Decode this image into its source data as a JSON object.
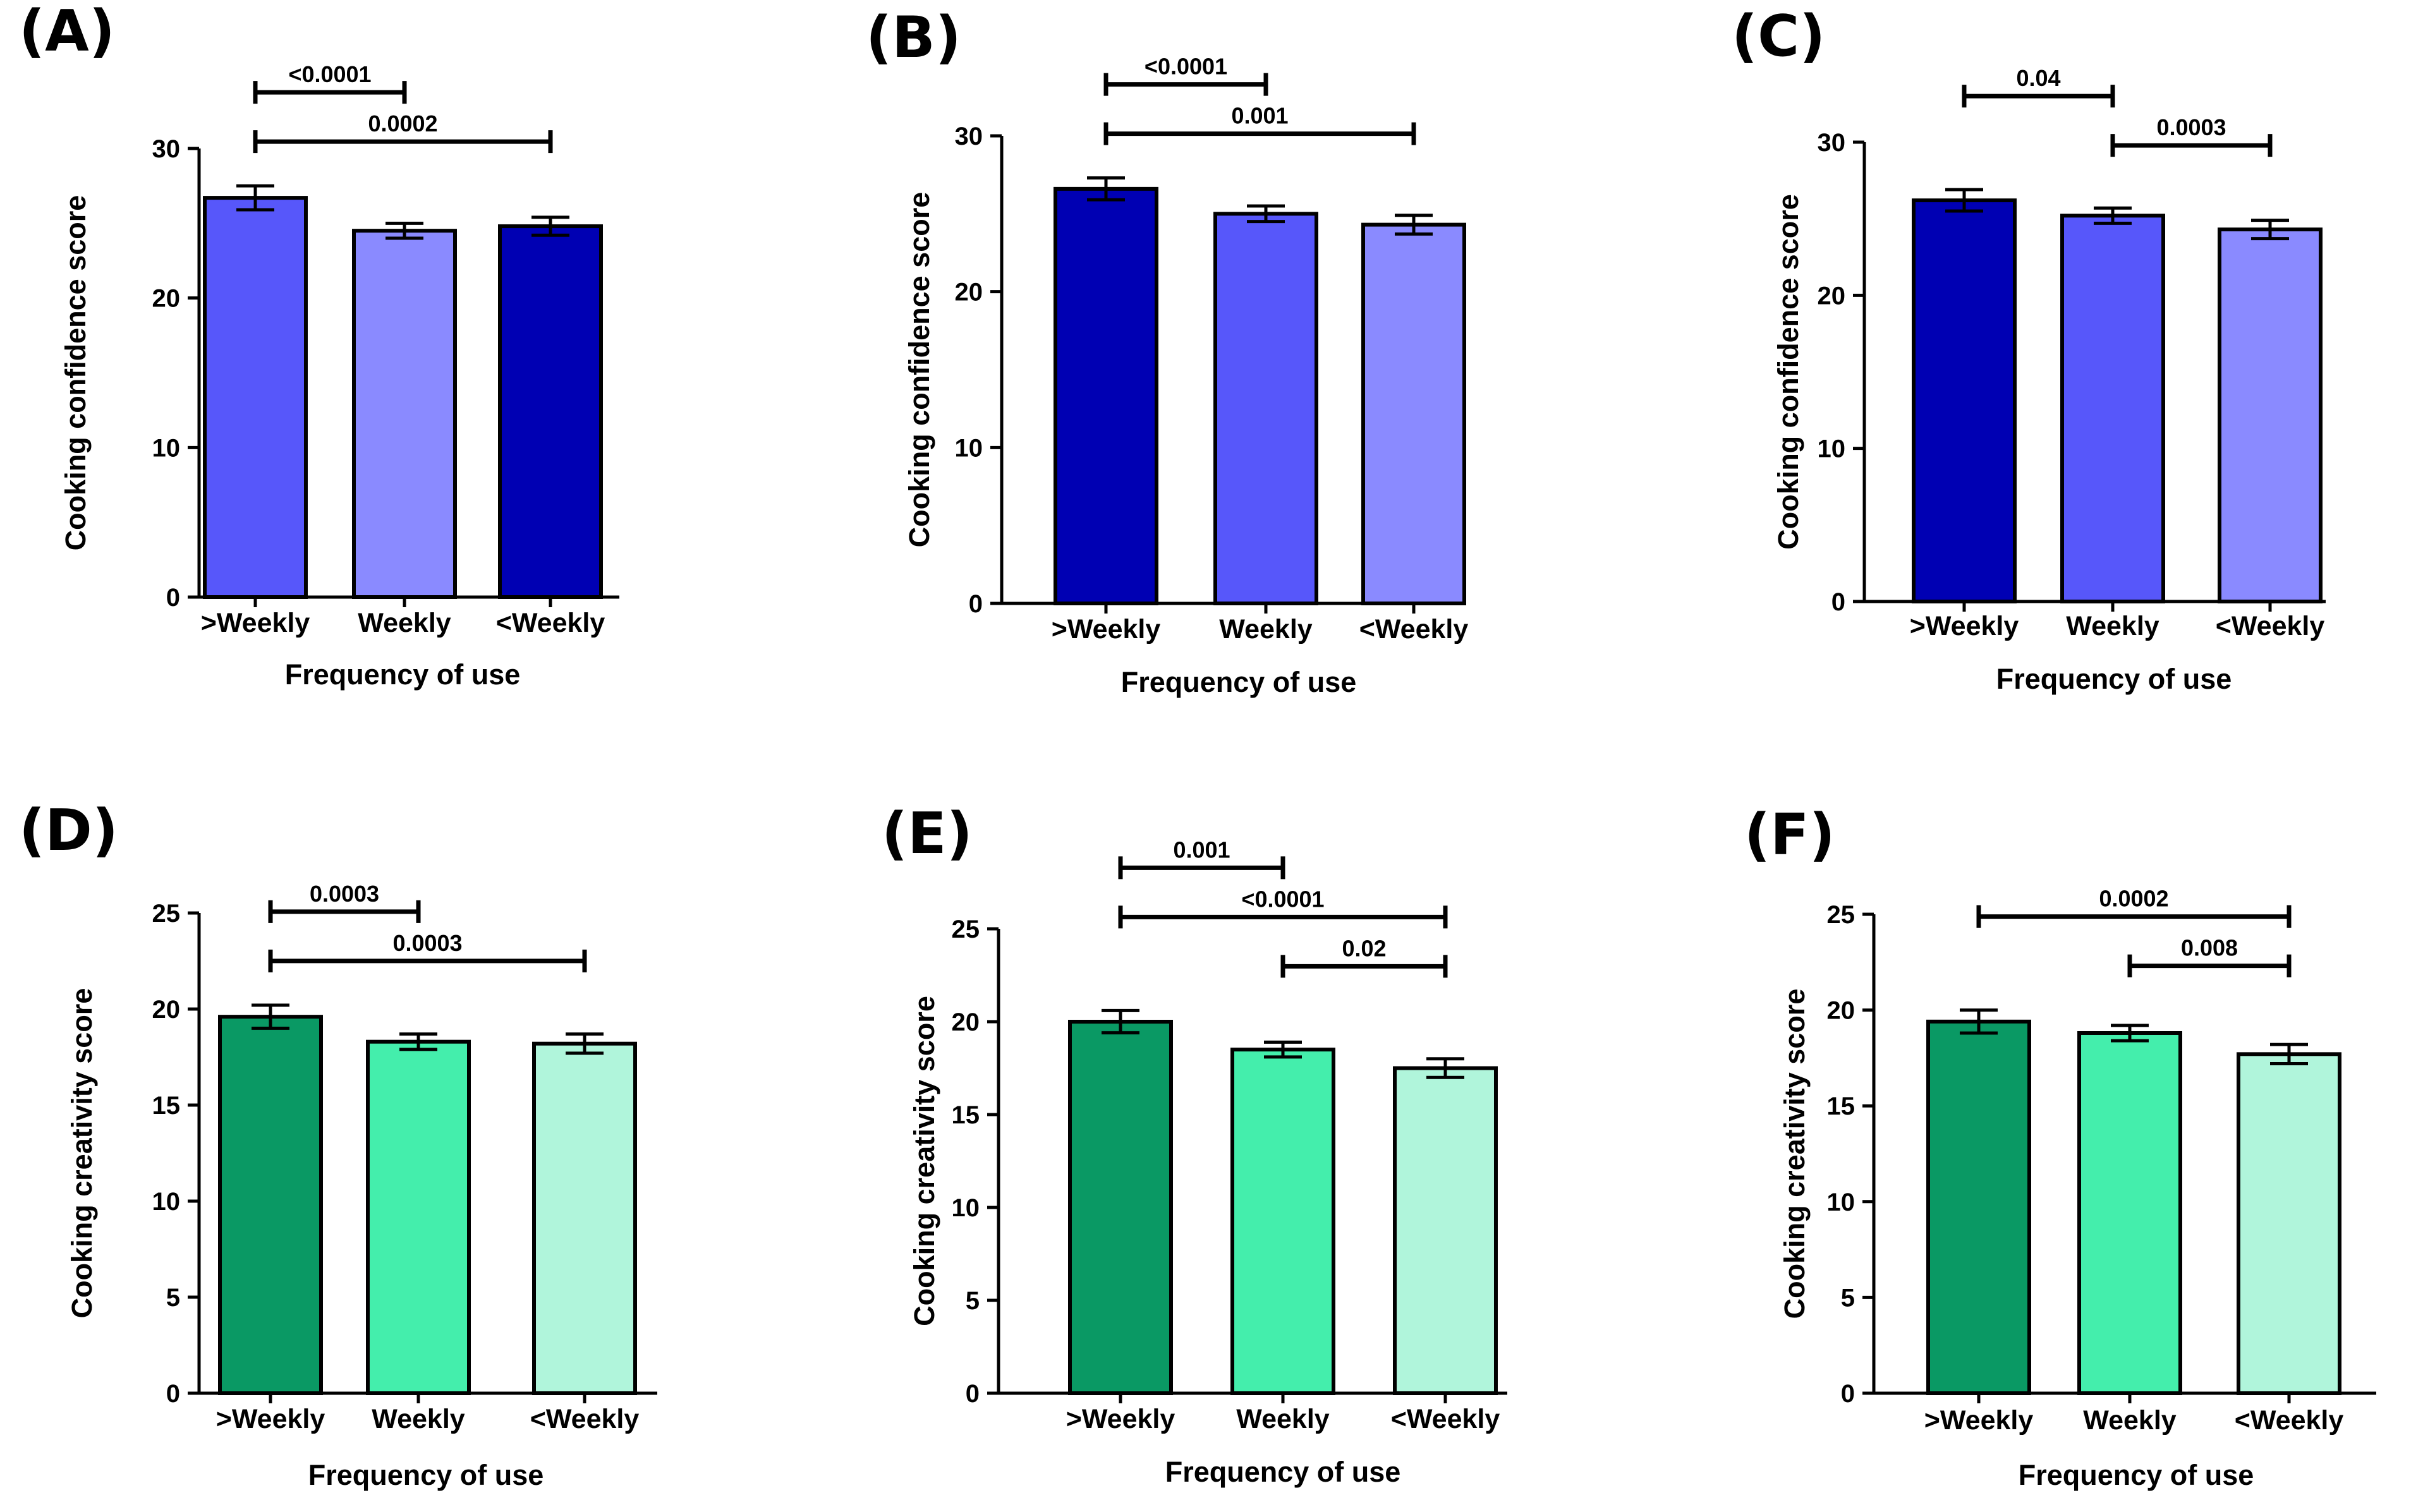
{
  "chart_data": [
    {
      "type": "bar",
      "panel_label": "(A)",
      "ylabel": "Cooking confidence score",
      "xlabel": "Frequency of use",
      "categories": [
        ">Weekly",
        "Weekly",
        "<Weekly"
      ],
      "values": [
        26.7,
        24.5,
        24.8
      ],
      "error": [
        0.8,
        0.5,
        0.6
      ],
      "colors": [
        "#5757fa",
        "#8a8aff",
        "#0000b3"
      ],
      "ylim": [
        0,
        30
      ],
      "yticks": [
        0,
        10,
        20,
        30
      ],
      "comparisons": [
        {
          "from": 0,
          "to": 1,
          "label": "<0.0001",
          "level": 2
        },
        {
          "from": 0,
          "to": 2,
          "label": "0.0002",
          "level": 1
        }
      ]
    },
    {
      "type": "bar",
      "panel_label": "(B)",
      "ylabel": "Cooking confidence score",
      "xlabel": "Frequency of use",
      "categories": [
        ">Weekly",
        "Weekly",
        "<Weekly"
      ],
      "values": [
        26.6,
        25.0,
        24.3
      ],
      "error": [
        0.7,
        0.5,
        0.6
      ],
      "colors": [
        "#0000b3",
        "#5757fa",
        "#8a8aff"
      ],
      "ylim": [
        0,
        30
      ],
      "yticks": [
        0,
        10,
        20,
        30
      ],
      "comparisons": [
        {
          "from": 0,
          "to": 1,
          "label": "<0.0001",
          "level": 2
        },
        {
          "from": 0,
          "to": 2,
          "label": "0.001",
          "level": 1
        }
      ]
    },
    {
      "type": "bar",
      "panel_label": "(C)",
      "ylabel": "Cooking confidence score",
      "xlabel": "Frequency of use",
      "categories": [
        ">Weekly",
        "Weekly",
        "<Weekly"
      ],
      "values": [
        26.2,
        25.2,
        24.3
      ],
      "error": [
        0.7,
        0.5,
        0.6
      ],
      "colors": [
        "#0000b3",
        "#5757fa",
        "#8a8aff"
      ],
      "ylim": [
        0,
        30
      ],
      "yticks": [
        0,
        10,
        20,
        30
      ],
      "comparisons": [
        {
          "from": 0,
          "to": 1,
          "label": "0.04",
          "level": 2
        },
        {
          "from": 1,
          "to": 2,
          "label": "0.0003",
          "level": 1
        }
      ]
    },
    {
      "type": "bar",
      "panel_label": "(D)",
      "ylabel": "Cooking creativity score",
      "xlabel": "Frequency of use",
      "categories": [
        ">Weekly",
        "Weekly",
        "<Weekly"
      ],
      "values": [
        19.6,
        18.3,
        18.2
      ],
      "error": [
        0.6,
        0.4,
        0.5
      ],
      "colors": [
        "#0a9964",
        "#44eeac",
        "#b0f5db"
      ],
      "ylim": [
        0,
        25
      ],
      "yticks": [
        0,
        5,
        10,
        15,
        20,
        25
      ],
      "comparisons": [
        {
          "from": 0,
          "to": 1,
          "label": "0.0003",
          "level": 2
        },
        {
          "from": 0,
          "to": 2,
          "label": "0.0003",
          "level": 1
        }
      ]
    },
    {
      "type": "bar",
      "panel_label": "(E)",
      "ylabel": "Cooking creativity score",
      "xlabel": "Frequency of use",
      "categories": [
        ">Weekly",
        "Weekly",
        "<Weekly"
      ],
      "values": [
        20.0,
        18.5,
        17.5
      ],
      "error": [
        0.6,
        0.4,
        0.5
      ],
      "colors": [
        "#0a9964",
        "#44eeac",
        "#b0f5db"
      ],
      "ylim": [
        0,
        25
      ],
      "yticks": [
        0,
        5,
        10,
        15,
        20,
        25
      ],
      "comparisons": [
        {
          "from": 0,
          "to": 1,
          "label": "0.001",
          "level": 3
        },
        {
          "from": 0,
          "to": 2,
          "label": "<0.0001",
          "level": 2
        },
        {
          "from": 1,
          "to": 2,
          "label": "0.02",
          "level": 1
        }
      ]
    },
    {
      "type": "bar",
      "panel_label": "(F)",
      "ylabel": "Cooking creativity score",
      "xlabel": "Frequency of use",
      "categories": [
        ">Weekly",
        "Weekly",
        "<Weekly"
      ],
      "values": [
        19.4,
        18.8,
        17.7
      ],
      "error": [
        0.6,
        0.4,
        0.5
      ],
      "colors": [
        "#0a9964",
        "#44eeac",
        "#b0f5db"
      ],
      "ylim": [
        0,
        25
      ],
      "yticks": [
        0,
        5,
        10,
        15,
        20,
        25
      ],
      "comparisons": [
        {
          "from": 0,
          "to": 2,
          "label": "0.0002",
          "level": 2
        },
        {
          "from": 1,
          "to": 2,
          "label": "0.008",
          "level": 1
        }
      ]
    }
  ]
}
